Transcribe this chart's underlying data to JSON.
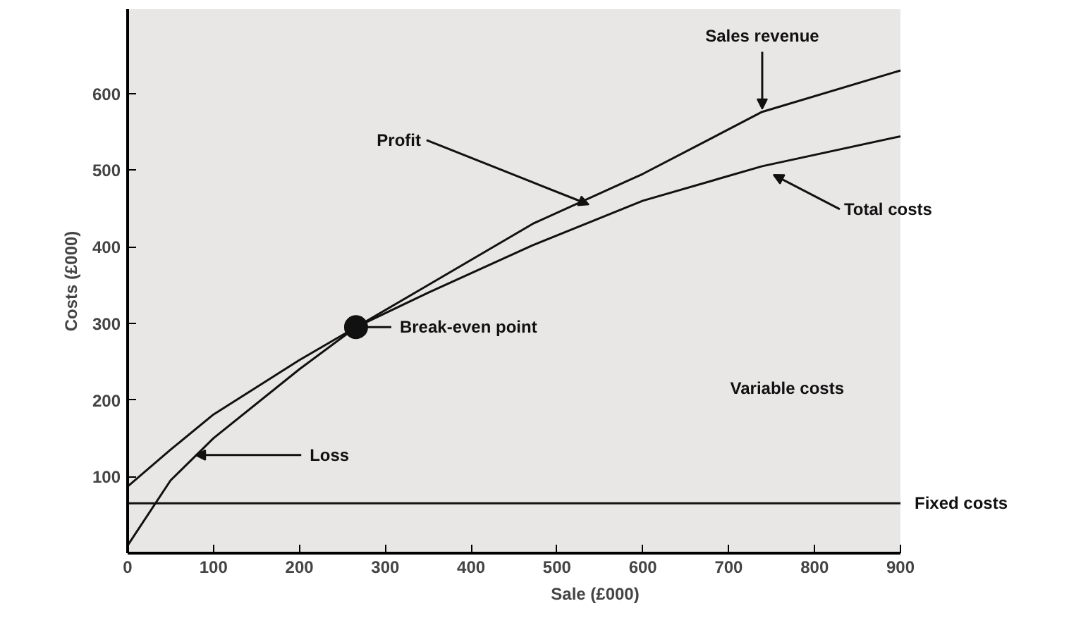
{
  "chart_data": {
    "type": "line",
    "xlabel": "Sale (£000)",
    "ylabel": "Costs (£000)",
    "x": [
      0,
      50,
      100,
      200,
      266,
      350,
      472,
      600,
      739,
      900
    ],
    "series": [
      {
        "name": "Sales revenue",
        "color": "#111111",
        "values": [
          10,
          95,
          150,
          240,
          295,
          350,
          430,
          495,
          576,
          630
        ]
      },
      {
        "name": "Total costs",
        "color": "#111111",
        "values": [
          87,
          135,
          181,
          252,
          295,
          340,
          402,
          460,
          505,
          544
        ]
      },
      {
        "type": "scatter",
        "color": "#111111",
        "x": [
          266
        ],
        "values": [
          295
        ],
        "marker": "circle"
      }
    ],
    "ref_lines": [
      {
        "axis": "y",
        "value": 65,
        "label": "Fixed costs",
        "color": "#111111"
      }
    ],
    "annotations": [
      {
        "text": "Profit",
        "x": 537,
        "y": 455
      },
      {
        "text": "Break-even point",
        "x": 266,
        "y": 295
      },
      {
        "text": "Loss",
        "x": 79,
        "y": 128
      },
      "Variable costs"
    ],
    "xlim": [
      0,
      900
    ],
    "ylim": [
      0,
      710
    ],
    "xticks": [
      0,
      100,
      200,
      300,
      400,
      500,
      600,
      700,
      800,
      900
    ],
    "yticks": [
      100,
      200,
      300,
      400,
      500,
      600
    ],
    "grid": false,
    "legend": false,
    "marker": "none",
    "line_style": "solid"
  }
}
